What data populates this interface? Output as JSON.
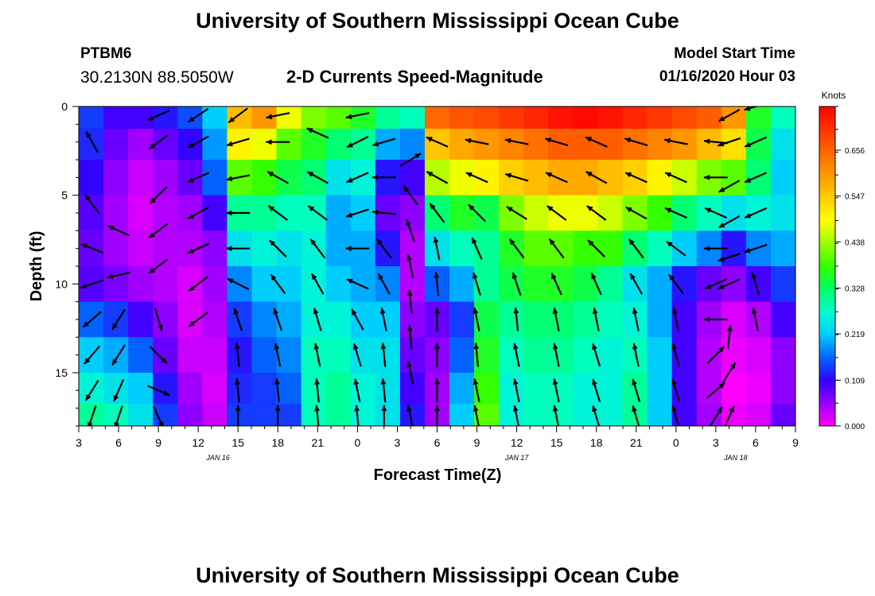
{
  "header": {
    "title": "University of Southern Mississippi Ocean Cube",
    "station_id": "PTBM6",
    "station_coords": "30.2130N 88.5050W",
    "product": "2-D Currents Speed-Magnitude",
    "model_start_label": "Model Start Time",
    "model_start_value": "01/16/2020 Hour 03"
  },
  "footer": {
    "title": "University of Southern Mississippi Ocean Cube"
  },
  "chart_data": {
    "type": "heatmap",
    "xlabel": "Forecast Time(Z)",
    "ylabel": "Depth (ft)",
    "x_ticks": [
      "3",
      "6",
      "9",
      "12",
      "15",
      "18",
      "21",
      "0",
      "3",
      "6",
      "9",
      "12",
      "15",
      "18",
      "21",
      "0",
      "3",
      "6",
      "9"
    ],
    "date_labels": [
      {
        "label": "JAN 16",
        "at_tick": 3.5
      },
      {
        "label": "JAN 17",
        "at_tick": 11
      },
      {
        "label": "JAN 18",
        "at_tick": 16.5
      }
    ],
    "y_ticks": [
      0,
      5,
      10,
      15
    ],
    "ylim": [
      0,
      18
    ],
    "y_inverted": true,
    "colorbar": {
      "unit": "Knots",
      "ticks": [
        "0.656",
        "0.547",
        "0.438",
        "0.328",
        "0.219",
        "0.109",
        "0.000"
      ],
      "range": [
        0,
        0.76
      ],
      "colors": [
        "#ff00ff",
        "#9900ff",
        "#3300ff",
        "#0066ff",
        "#00ccff",
        "#00ffcc",
        "#00ff66",
        "#33ff00",
        "#99ff00",
        "#ffff00",
        "#ffcc00",
        "#ff9900",
        "#ff6600",
        "#ff3300",
        "#ff0000"
      ]
    },
    "speed_cols_depths_ft": [
      0.5,
      2,
      4,
      6,
      8,
      10,
      12,
      14,
      16,
      17.5
    ],
    "speed_knots_by_column": [
      [
        0.14,
        0.13,
        0.11,
        0.09,
        0.08,
        0.09,
        0.16,
        0.22,
        0.26,
        0.3
      ],
      [
        0.1,
        0.08,
        0.06,
        0.05,
        0.05,
        0.07,
        0.14,
        0.2,
        0.24,
        0.28
      ],
      [
        0.1,
        0.05,
        0.03,
        0.02,
        0.03,
        0.05,
        0.1,
        0.16,
        0.22,
        0.24
      ],
      [
        0.12,
        0.08,
        0.05,
        0.04,
        0.04,
        0.04,
        0.06,
        0.08,
        0.12,
        0.14
      ],
      [
        0.15,
        0.11,
        0.08,
        0.05,
        0.04,
        0.02,
        0.02,
        0.03,
        0.05,
        0.06
      ],
      [
        0.22,
        0.19,
        0.16,
        0.1,
        0.06,
        0.05,
        0.04,
        0.03,
        0.02,
        0.03
      ],
      [
        0.56,
        0.5,
        0.4,
        0.3,
        0.24,
        0.18,
        0.14,
        0.12,
        0.13,
        0.14
      ],
      [
        0.6,
        0.48,
        0.38,
        0.3,
        0.26,
        0.22,
        0.18,
        0.16,
        0.14,
        0.14
      ],
      [
        0.48,
        0.4,
        0.34,
        0.28,
        0.24,
        0.22,
        0.2,
        0.18,
        0.16,
        0.14
      ],
      [
        0.42,
        0.36,
        0.32,
        0.28,
        0.26,
        0.26,
        0.26,
        0.28,
        0.28,
        0.28
      ],
      [
        0.4,
        0.32,
        0.24,
        0.2,
        0.2,
        0.22,
        0.26,
        0.28,
        0.3,
        0.3
      ],
      [
        0.36,
        0.3,
        0.26,
        0.22,
        0.2,
        0.2,
        0.22,
        0.24,
        0.26,
        0.26
      ],
      [
        0.3,
        0.2,
        0.12,
        0.08,
        0.12,
        0.18,
        0.22,
        0.24,
        0.24,
        0.24
      ],
      [
        0.28,
        0.18,
        0.1,
        0.06,
        0.04,
        0.04,
        0.06,
        0.08,
        0.1,
        0.12
      ],
      [
        0.65,
        0.55,
        0.45,
        0.32,
        0.24,
        0.16,
        0.08,
        0.06,
        0.05,
        0.05
      ],
      [
        0.67,
        0.58,
        0.48,
        0.36,
        0.28,
        0.2,
        0.14,
        0.16,
        0.2,
        0.22
      ],
      [
        0.68,
        0.6,
        0.5,
        0.34,
        0.3,
        0.3,
        0.34,
        0.36,
        0.38,
        0.4
      ],
      [
        0.7,
        0.62,
        0.54,
        0.42,
        0.36,
        0.34,
        0.3,
        0.28,
        0.26,
        0.26
      ],
      [
        0.72,
        0.64,
        0.56,
        0.46,
        0.4,
        0.36,
        0.32,
        0.3,
        0.28,
        0.28
      ],
      [
        0.74,
        0.66,
        0.58,
        0.48,
        0.4,
        0.36,
        0.32,
        0.3,
        0.28,
        0.28
      ],
      [
        0.75,
        0.66,
        0.58,
        0.48,
        0.38,
        0.34,
        0.3,
        0.28,
        0.26,
        0.26
      ],
      [
        0.74,
        0.66,
        0.56,
        0.46,
        0.38,
        0.3,
        0.28,
        0.26,
        0.26,
        0.26
      ],
      [
        0.72,
        0.64,
        0.54,
        0.42,
        0.32,
        0.24,
        0.26,
        0.28,
        0.3,
        0.3
      ],
      [
        0.7,
        0.62,
        0.5,
        0.38,
        0.28,
        0.2,
        0.2,
        0.22,
        0.22,
        0.22
      ],
      [
        0.68,
        0.6,
        0.46,
        0.32,
        0.22,
        0.12,
        0.1,
        0.1,
        0.1,
        0.1
      ],
      [
        0.66,
        0.56,
        0.42,
        0.28,
        0.18,
        0.08,
        0.05,
        0.04,
        0.04,
        0.05
      ],
      [
        0.6,
        0.52,
        0.4,
        0.24,
        0.12,
        0.06,
        0.02,
        0.01,
        0.0,
        0.01
      ],
      [
        0.36,
        0.34,
        0.32,
        0.26,
        0.18,
        0.1,
        0.04,
        0.02,
        0.01,
        0.02
      ],
      [
        0.28,
        0.24,
        0.22,
        0.24,
        0.2,
        0.14,
        0.1,
        0.06,
        0.06,
        0.08
      ]
    ],
    "vectors": [
      [
        4,
        2,
        -0.5,
        -0.9
      ],
      [
        4,
        5.5,
        -0.6,
        -0.8
      ],
      [
        4,
        8,
        -1,
        -0.4
      ],
      [
        4,
        10,
        -0.9,
        0.3
      ],
      [
        4,
        12,
        -0.7,
        0.6
      ],
      [
        4,
        14,
        -0.6,
        0.7
      ],
      [
        4,
        16,
        -0.5,
        0.8
      ],
      [
        4,
        17.5,
        -0.3,
        0.9
      ],
      [
        6,
        7,
        -0.9,
        -0.4
      ],
      [
        6,
        9.5,
        -0.9,
        0.2
      ],
      [
        6,
        12,
        -0.5,
        0.8
      ],
      [
        6,
        14,
        -0.5,
        0.8
      ],
      [
        6,
        16,
        -0.4,
        0.9
      ],
      [
        6,
        17.5,
        -0.3,
        0.9
      ],
      [
        9,
        0.5,
        -0.9,
        0.4
      ],
      [
        9,
        2,
        -0.8,
        0.6
      ],
      [
        9,
        5,
        -0.7,
        0.7
      ],
      [
        9,
        7,
        -0.8,
        0.6
      ],
      [
        9,
        9,
        -0.8,
        0.6
      ],
      [
        9,
        12,
        0.3,
        1
      ],
      [
        9,
        14,
        0.7,
        0.7
      ],
      [
        9,
        16,
        0.7,
        0.3
      ],
      [
        9,
        17.5,
        0.4,
        0.9
      ],
      [
        12,
        0.5,
        -0.9,
        0.6
      ],
      [
        12,
        2,
        -0.9,
        0.5
      ],
      [
        12,
        4,
        -0.9,
        0.4
      ],
      [
        12,
        6,
        -0.9,
        0.5
      ],
      [
        12,
        8,
        -0.9,
        0.4
      ],
      [
        12,
        10,
        -0.8,
        0.6
      ],
      [
        12,
        12,
        -0.8,
        0.6
      ],
      [
        15,
        0.5,
        -0.8,
        0.6
      ],
      [
        15,
        2,
        -1,
        0.3
      ],
      [
        15,
        4,
        -1,
        0.2
      ],
      [
        15,
        6,
        -1,
        0
      ],
      [
        15,
        8,
        -1,
        0
      ],
      [
        15,
        10,
        -1,
        -0.5
      ],
      [
        15,
        12,
        -0.3,
        -0.9
      ],
      [
        15,
        14,
        -0.1,
        -1
      ],
      [
        15,
        16,
        -0.1,
        -1
      ],
      [
        15,
        17.5,
        0,
        -1
      ],
      [
        18,
        0.5,
        -1,
        0.2
      ],
      [
        18,
        2,
        -1,
        0
      ],
      [
        18,
        4,
        -0.9,
        -0.5
      ],
      [
        18,
        6,
        -0.8,
        -0.6
      ],
      [
        18,
        8,
        -0.7,
        -0.7
      ],
      [
        18,
        10,
        -0.6,
        -0.8
      ],
      [
        18,
        12,
        -0.3,
        -0.9
      ],
      [
        18,
        14,
        -0.2,
        -1
      ],
      [
        18,
        16,
        -0.1,
        -1
      ],
      [
        18,
        17.5,
        0,
        -1
      ],
      [
        21,
        1.5,
        -0.9,
        -0.4
      ],
      [
        21,
        4,
        -0.9,
        -0.5
      ],
      [
        21,
        6,
        -0.8,
        -0.6
      ],
      [
        21,
        8,
        -0.6,
        -0.8
      ],
      [
        21,
        10,
        -0.5,
        -0.9
      ],
      [
        21,
        12,
        -0.3,
        -1
      ],
      [
        21,
        14,
        -0.2,
        -1
      ],
      [
        21,
        16,
        -0.1,
        -1
      ],
      [
        21,
        17.5,
        -0.1,
        -1
      ],
      [
        0,
        0.5,
        -1,
        0.2
      ],
      [
        0,
        2,
        -1,
        0.5
      ],
      [
        0,
        4,
        -0.9,
        0.4
      ],
      [
        0,
        6,
        -0.9,
        0.3
      ],
      [
        0,
        8,
        -1,
        0
      ],
      [
        0,
        10,
        -0.9,
        -0.4
      ],
      [
        0,
        12,
        -0.5,
        -0.9
      ],
      [
        0,
        14,
        -0.3,
        -1
      ],
      [
        0,
        16,
        -0.2,
        -1
      ],
      [
        0,
        17.5,
        -0.1,
        -1
      ],
      [
        2,
        2,
        -1,
        0.3
      ],
      [
        2,
        4,
        -1,
        0
      ],
      [
        2,
        6,
        -1,
        -0.1
      ],
      [
        2,
        8,
        -0.6,
        -0.8
      ],
      [
        2,
        10,
        -0.5,
        -0.9
      ],
      [
        2,
        12,
        -0.2,
        -1
      ],
      [
        2,
        14,
        -0.1,
        -1
      ],
      [
        2,
        16,
        -0.1,
        -1
      ],
      [
        2,
        17.5,
        0,
        -1
      ],
      [
        4,
        3,
        0.5,
        -0.3
      ],
      [
        4,
        5,
        -0.6,
        -0.8
      ],
      [
        4,
        7,
        -0.3,
        -0.9
      ],
      [
        4,
        9,
        -0.2,
        -1
      ],
      [
        4,
        11,
        -0.1,
        -1
      ],
      [
        4,
        13,
        -0.1,
        -1
      ],
      [
        4,
        15,
        -0.2,
        -1
      ],
      [
        4,
        17.5,
        -0.2,
        -1
      ],
      [
        6,
        2,
        -0.9,
        -0.4
      ],
      [
        6,
        4,
        -0.9,
        -0.5
      ],
      [
        6,
        6,
        -0.6,
        -0.8
      ],
      [
        6,
        8,
        -0.2,
        -1
      ],
      [
        6,
        10,
        -0.1,
        -1
      ],
      [
        6,
        12,
        0,
        -1
      ],
      [
        6,
        14,
        0,
        -1
      ],
      [
        6,
        16,
        0,
        -1
      ],
      [
        6,
        17.5,
        0,
        -1
      ],
      [
        9,
        2,
        -1,
        -0.2
      ],
      [
        9,
        4,
        -0.9,
        -0.4
      ],
      [
        9,
        6,
        -0.7,
        -0.7
      ],
      [
        9,
        8,
        -0.4,
        -0.9
      ],
      [
        9,
        10,
        -0.3,
        -1
      ],
      [
        9,
        12,
        -0.2,
        -1
      ],
      [
        9,
        14,
        -0.1,
        -1
      ],
      [
        9,
        16,
        -0.2,
        -1
      ],
      [
        9,
        17.5,
        -0.2,
        -1
      ],
      [
        12,
        2,
        -1,
        -0.2
      ],
      [
        12,
        4,
        -1,
        -0.3
      ],
      [
        12,
        6,
        -0.8,
        -0.5
      ],
      [
        12,
        8,
        -0.6,
        -0.8
      ],
      [
        12,
        10,
        -0.3,
        -0.9
      ],
      [
        12,
        12,
        -0.1,
        -1
      ],
      [
        12,
        14,
        -0.2,
        -1
      ],
      [
        12,
        16,
        -0.2,
        -1
      ],
      [
        12,
        17.5,
        -0.2,
        -1
      ],
      [
        15,
        2,
        -1,
        -0.3
      ],
      [
        15,
        4,
        -0.9,
        -0.4
      ],
      [
        15,
        6,
        -0.8,
        -0.6
      ],
      [
        15,
        8,
        -0.6,
        -0.8
      ],
      [
        15,
        10,
        -0.4,
        -0.9
      ],
      [
        15,
        12,
        -0.2,
        -1
      ],
      [
        15,
        14,
        -0.2,
        -1
      ],
      [
        15,
        16,
        -0.2,
        -1
      ],
      [
        15,
        17.5,
        -0.2,
        -1
      ],
      [
        18,
        2,
        -0.9,
        -0.4
      ],
      [
        18,
        4,
        -0.9,
        -0.5
      ],
      [
        18,
        6,
        -0.8,
        -0.6
      ],
      [
        18,
        8,
        -0.7,
        -0.7
      ],
      [
        18,
        10,
        -0.4,
        -0.9
      ],
      [
        18,
        12,
        -0.2,
        -1
      ],
      [
        18,
        14,
        -0.3,
        -1
      ],
      [
        18,
        16,
        -0.3,
        -1
      ],
      [
        18,
        17.5,
        -0.3,
        -1
      ],
      [
        21,
        2,
        -1,
        -0.3
      ],
      [
        21,
        4,
        -0.9,
        -0.4
      ],
      [
        21,
        6,
        -0.9,
        -0.5
      ],
      [
        21,
        8,
        -0.6,
        -0.8
      ],
      [
        21,
        10,
        -0.5,
        -0.9
      ],
      [
        21,
        12,
        -0.2,
        -1
      ],
      [
        21,
        14,
        -0.2,
        -1
      ],
      [
        21,
        16,
        -0.3,
        -1
      ],
      [
        21,
        17.5,
        -0.3,
        -1
      ],
      [
        0,
        2,
        -1,
        -0.2
      ],
      [
        0,
        4,
        -0.9,
        -0.4
      ],
      [
        0,
        6,
        -0.9,
        -0.4
      ],
      [
        0,
        8,
        -0.8,
        -0.6
      ],
      [
        0,
        10,
        -0.6,
        -0.8
      ],
      [
        0,
        12,
        -0.2,
        -1
      ],
      [
        0,
        14,
        -0.3,
        -1
      ],
      [
        0,
        16,
        -0.3,
        -1
      ],
      [
        0,
        17.5,
        -0.3,
        -1
      ],
      [
        3,
        2,
        -1,
        -0.1
      ],
      [
        3,
        4,
        -1,
        0
      ],
      [
        3,
        6,
        -0.9,
        -0.4
      ],
      [
        3,
        8,
        -1,
        0
      ],
      [
        3,
        10,
        -0.9,
        0.4
      ],
      [
        3,
        12,
        -1,
        0
      ],
      [
        3,
        14,
        0.6,
        -0.6
      ],
      [
        3,
        16,
        0.7,
        -0.6
      ],
      [
        3,
        17.5,
        0.5,
        -0.8
      ],
      [
        4,
        0.5,
        -0.9,
        0.5
      ],
      [
        4,
        2,
        -0.9,
        0.3
      ],
      [
        4,
        4.5,
        -0.9,
        0.5
      ],
      [
        4,
        6.5,
        -0.9,
        0.5
      ],
      [
        4,
        8.5,
        -0.9,
        0.3
      ],
      [
        4,
        10,
        -0.9,
        0.4
      ],
      [
        4,
        13,
        0.1,
        -1
      ],
      [
        4,
        15,
        0.5,
        -0.8
      ],
      [
        4,
        17.5,
        0.4,
        -0.9
      ],
      [
        6,
        0,
        -1,
        0.3
      ],
      [
        6,
        2,
        -0.9,
        0.4
      ],
      [
        6,
        4,
        -0.9,
        0.4
      ],
      [
        6,
        6,
        -0.9,
        0.4
      ],
      [
        6,
        8,
        -0.9,
        0.3
      ],
      [
        6,
        10,
        -0.3,
        -1
      ],
      [
        6,
        12,
        -0.2,
        -1
      ]
    ]
  }
}
